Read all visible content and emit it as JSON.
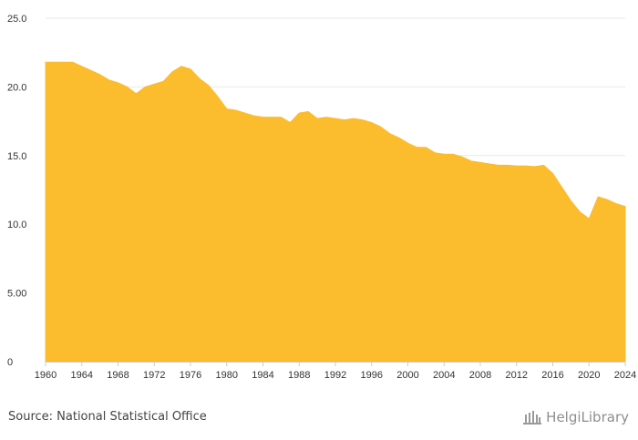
{
  "source": "Source: National Statistical Office",
  "logo_text": "HelgiLibrary",
  "colors": {
    "area": "#FBBC2E",
    "grid": "#e9e9e9",
    "axis": "#cccccc",
    "logo": "#9a9a9a"
  },
  "chart_data": {
    "type": "area",
    "x": [
      1960,
      1961,
      1962,
      1963,
      1964,
      1965,
      1966,
      1967,
      1968,
      1969,
      1970,
      1971,
      1972,
      1973,
      1974,
      1975,
      1976,
      1977,
      1978,
      1979,
      1980,
      1981,
      1982,
      1983,
      1984,
      1985,
      1986,
      1987,
      1988,
      1989,
      1990,
      1991,
      1992,
      1993,
      1994,
      1995,
      1996,
      1997,
      1998,
      1999,
      2000,
      2001,
      2002,
      2003,
      2004,
      2005,
      2006,
      2007,
      2008,
      2009,
      2010,
      2011,
      2012,
      2013,
      2014,
      2015,
      2016,
      2017,
      2018,
      2019,
      2020,
      2021,
      2022,
      2023,
      2024
    ],
    "values": [
      21.8,
      21.8,
      21.8,
      21.8,
      21.5,
      21.2,
      20.9,
      20.5,
      20.3,
      20.0,
      19.5,
      20.0,
      20.2,
      20.4,
      21.1,
      21.5,
      21.3,
      20.6,
      20.1,
      19.3,
      18.4,
      18.3,
      18.1,
      17.9,
      17.8,
      17.8,
      17.8,
      17.4,
      18.1,
      18.2,
      17.7,
      17.8,
      17.7,
      17.6,
      17.7,
      17.6,
      17.4,
      17.1,
      16.6,
      16.3,
      15.9,
      15.6,
      15.6,
      15.2,
      15.1,
      15.1,
      14.9,
      14.6,
      14.5,
      14.4,
      14.3,
      14.3,
      14.25,
      14.25,
      14.2,
      14.3,
      13.7,
      12.7,
      11.7,
      10.9,
      10.4,
      12.0,
      11.8,
      11.5,
      11.3
    ],
    "xticks": [
      "1960",
      "1964",
      "1968",
      "1972",
      "1976",
      "1980",
      "1984",
      "1988",
      "1992",
      "1996",
      "2000",
      "2004",
      "2008",
      "2012",
      "2016",
      "2020",
      "2024"
    ],
    "ytick_labels": [
      "0",
      "5.00",
      "10.0",
      "15.0",
      "20.0",
      "25.0"
    ],
    "yticks": [
      0,
      5,
      10,
      15,
      20,
      25
    ],
    "ylim": [
      0,
      25
    ],
    "xlim": [
      1960,
      2024
    ],
    "grid": true,
    "title": "",
    "xlabel": "",
    "ylabel": ""
  }
}
